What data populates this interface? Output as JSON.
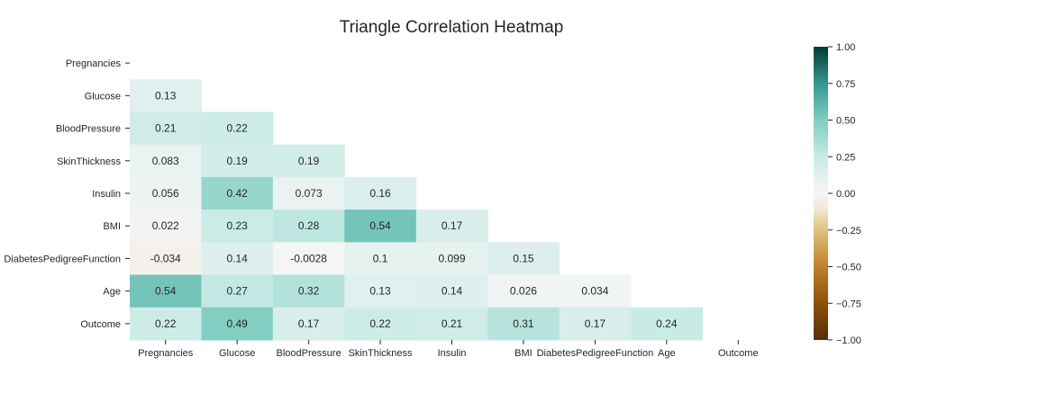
{
  "chart_data": {
    "type": "heatmap",
    "title": "Triangle Correlation Heatmap",
    "variables": [
      "Pregnancies",
      "Glucose",
      "BloodPressure",
      "SkinThickness",
      "Insulin",
      "BMI",
      "DiabetesPedigreeFunction",
      "Age",
      "Outcome"
    ],
    "mask": "upper-triangle-including-diagonal",
    "matrix": [
      [
        null,
        null,
        null,
        null,
        null,
        null,
        null,
        null,
        null
      ],
      [
        0.13,
        null,
        null,
        null,
        null,
        null,
        null,
        null,
        null
      ],
      [
        0.21,
        0.22,
        null,
        null,
        null,
        null,
        null,
        null,
        null
      ],
      [
        0.083,
        0.19,
        0.19,
        null,
        null,
        null,
        null,
        null,
        null
      ],
      [
        0.056,
        0.42,
        0.073,
        0.16,
        null,
        null,
        null,
        null,
        null
      ],
      [
        0.022,
        0.23,
        0.28,
        0.54,
        0.17,
        null,
        null,
        null,
        null
      ],
      [
        -0.034,
        0.14,
        -0.0028,
        0.1,
        0.099,
        0.15,
        null,
        null,
        null
      ],
      [
        0.54,
        0.27,
        0.32,
        0.13,
        0.14,
        0.026,
        0.034,
        null,
        null
      ],
      [
        0.22,
        0.49,
        0.17,
        0.22,
        0.21,
        0.31,
        0.17,
        0.24,
        null
      ]
    ],
    "cell_labels": [
      [
        null,
        null,
        null,
        null,
        null,
        null,
        null,
        null,
        null
      ],
      [
        "0.13",
        null,
        null,
        null,
        null,
        null,
        null,
        null,
        null
      ],
      [
        "0.21",
        "0.22",
        null,
        null,
        null,
        null,
        null,
        null,
        null
      ],
      [
        "0.083",
        "0.19",
        "0.19",
        null,
        null,
        null,
        null,
        null,
        null
      ],
      [
        "0.056",
        "0.42",
        "0.073",
        "0.16",
        null,
        null,
        null,
        null,
        null
      ],
      [
        "0.022",
        "0.23",
        "0.28",
        "0.54",
        "0.17",
        null,
        null,
        null,
        null
      ],
      [
        "-0.034",
        "0.14",
        "-0.0028",
        "0.1",
        "0.099",
        "0.15",
        null,
        null,
        null
      ],
      [
        "0.54",
        "0.27",
        "0.32",
        "0.13",
        "0.14",
        "0.026",
        "0.034",
        null,
        null
      ],
      [
        "0.22",
        "0.49",
        "0.17",
        "0.22",
        "0.21",
        "0.31",
        "0.17",
        "0.24",
        null
      ]
    ],
    "colormap": "BrBG",
    "vmin": -1.0,
    "vmax": 1.0,
    "colorbar_ticks": [
      "1.00",
      "0.75",
      "0.50",
      "0.25",
      "0.00",
      "−0.25",
      "−0.50",
      "−0.75",
      "−1.00"
    ],
    "colorbar_tick_values": [
      1.0,
      0.75,
      0.5,
      0.25,
      0.0,
      -0.25,
      -0.5,
      -0.75,
      -1.0
    ],
    "colormap_stops": [
      {
        "v": -1.0,
        "color": "#543005"
      },
      {
        "v": -0.75,
        "color": "#8c510a"
      },
      {
        "v": -0.5,
        "color": "#bf812d"
      },
      {
        "v": -0.25,
        "color": "#dfc27d"
      },
      {
        "v": -0.1,
        "color": "#f3ead5"
      },
      {
        "v": 0.0,
        "color": "#f5f5f5"
      },
      {
        "v": 0.1,
        "color": "#e6f2f0"
      },
      {
        "v": 0.25,
        "color": "#c7eae5"
      },
      {
        "v": 0.5,
        "color": "#80cdc1"
      },
      {
        "v": 0.75,
        "color": "#35978f"
      },
      {
        "v": 1.0,
        "color": "#003c30"
      }
    ]
  }
}
